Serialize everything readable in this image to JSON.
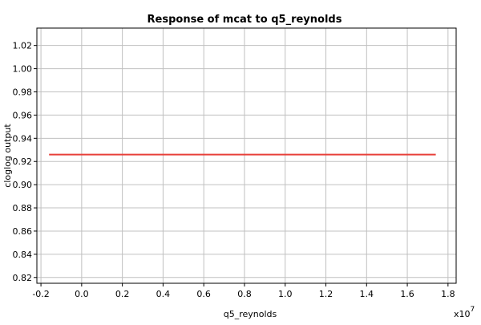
{
  "chart_data": {
    "type": "line",
    "title": "Response of mcat to q5_reynolds",
    "xlabel": "q5_reynolds",
    "ylabel": "cloglog output",
    "x_multiplier_label": "x10",
    "x_multiplier_exponent": "7",
    "xlim": [
      -0.22,
      1.84
    ],
    "ylim": [
      0.815,
      1.035
    ],
    "xticks": [
      -0.2,
      0.0,
      0.2,
      0.4,
      0.6,
      0.8,
      1.0,
      1.2,
      1.4,
      1.6,
      1.8
    ],
    "xtick_labels": [
      "-0.2",
      "0.0",
      "0.2",
      "0.4",
      "0.6",
      "0.8",
      "1.0",
      "1.2",
      "1.4",
      "1.6",
      "1.8"
    ],
    "yticks": [
      0.82,
      0.84,
      0.86,
      0.88,
      0.9,
      0.92,
      0.94,
      0.96,
      0.98,
      1.0,
      1.02
    ],
    "ytick_labels": [
      "0.82",
      "0.84",
      "0.86",
      "0.88",
      "0.90",
      "0.92",
      "0.94",
      "0.96",
      "0.98",
      "1.00",
      "1.02"
    ],
    "grid": true,
    "series": [
      {
        "color": "#e8403a",
        "x": [
          -0.16,
          1.74
        ],
        "y": [
          0.926,
          0.926
        ]
      }
    ]
  }
}
